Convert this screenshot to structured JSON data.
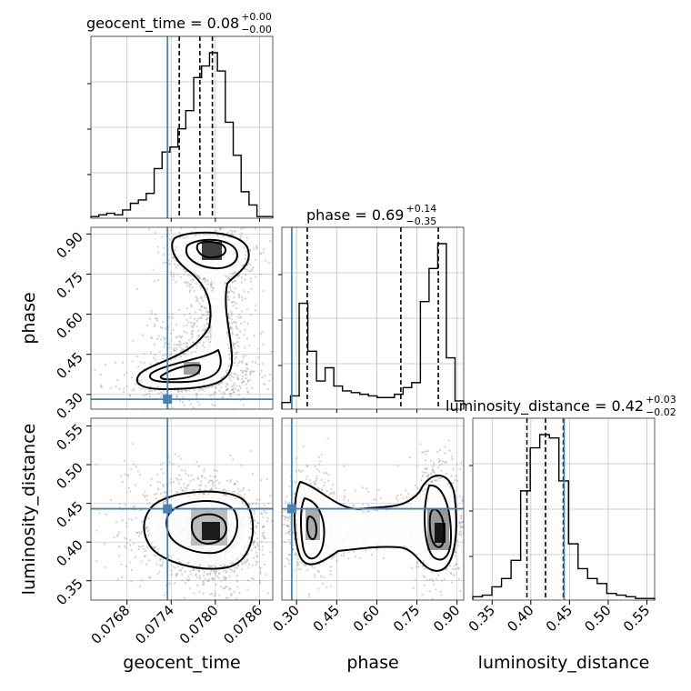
{
  "colors": {
    "truth": "#4682b4",
    "hist": "#000000",
    "grid": "#c0c0c0",
    "scatter": "#9a9a9a"
  },
  "chart_data": {
    "type": "corner",
    "parameters": [
      "geocent_time",
      "phase",
      "luminosity_distance"
    ],
    "axis_labels": {
      "x": [
        "geocent_time",
        "phase",
        "luminosity_distance"
      ],
      "y": [
        "phase",
        "luminosity_distance"
      ]
    },
    "ticks": {
      "geocent_time": [
        "0.0768",
        "0.0774",
        "0.0780",
        "0.0786"
      ],
      "phase": [
        "0.30",
        "0.45",
        "0.60",
        "0.75",
        "0.90"
      ],
      "luminosity_distance": [
        "0.35",
        "0.40",
        "0.45",
        "0.50",
        "0.55"
      ]
    },
    "ranges": {
      "geocent_time": [
        0.07631,
        0.07878
      ],
      "phase": [
        0.245,
        0.925
      ],
      "luminosity_distance": [
        0.325,
        0.56
      ]
    },
    "truths": {
      "geocent_time": 0.07735,
      "phase": 0.282,
      "luminosity_distance": 0.443
    },
    "titles": [
      {
        "param": "geocent_time",
        "main": "geocent_time = 0.08",
        "up": "+0.00",
        "down": "−0.00"
      },
      {
        "param": "phase",
        "main": "phase = 0.69",
        "up": "+0.14",
        "down": "−0.35"
      },
      {
        "param": "luminosity_distance",
        "main": "luminosity_distance = 0.42",
        "up": "+0.03",
        "down": "−0.02"
      }
    ],
    "quantiles": {
      "geocent_time": [
        0.07751,
        0.07779,
        0.07796
      ],
      "phase": [
        0.34,
        0.69,
        0.83
      ],
      "luminosity_distance": [
        0.395,
        0.419,
        0.442
      ]
    },
    "histograms": {
      "geocent_time": [
        0.01,
        0.02,
        0.03,
        0.02,
        0.05,
        0.09,
        0.11,
        0.15,
        0.3,
        0.4,
        0.43,
        0.54,
        0.65,
        0.85,
        0.92,
        1.0,
        0.89,
        0.58,
        0.38,
        0.16,
        0.08,
        0.01,
        0.01
      ],
      "phase": [
        0.04,
        0.08,
        0.64,
        0.35,
        0.17,
        0.25,
        0.14,
        0.11,
        0.1,
        0.09,
        0.08,
        0.07,
        0.07,
        0.09,
        0.13,
        0.16,
        0.65,
        0.85,
        1.0,
        0.31,
        0.05
      ],
      "luminosity_distance": [
        0.02,
        0.03,
        0.08,
        0.13,
        0.24,
        0.66,
        0.92,
        1.0,
        0.98,
        0.72,
        0.34,
        0.19,
        0.13,
        0.1,
        0.04,
        0.03,
        0.02,
        0.01,
        0.01
      ]
    }
  }
}
